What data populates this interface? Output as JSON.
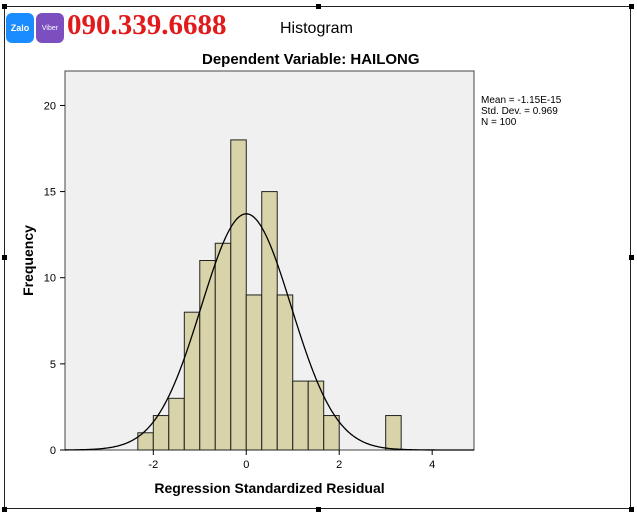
{
  "watermark": {
    "zalo_label": "Zalo",
    "viber_label": "Viber",
    "phone": "090.339.6688"
  },
  "chart_data": {
    "type": "bar",
    "title": "Histogram",
    "subtitle": "Dependent Variable: HAILONG",
    "xlabel": "Regression Standardized Residual",
    "ylabel": "Frequency",
    "xlim": [
      -3.9,
      4.9
    ],
    "ylim": [
      0,
      22
    ],
    "xticks": [
      -2,
      0,
      2,
      4
    ],
    "yticks": [
      0,
      5,
      10,
      15,
      20
    ],
    "bin_width": 0.333,
    "bins": [
      {
        "start": -2.333,
        "value": 1
      },
      {
        "start": -2.0,
        "value": 2
      },
      {
        "start": -1.667,
        "value": 3
      },
      {
        "start": -1.333,
        "value": 8
      },
      {
        "start": -1.0,
        "value": 11
      },
      {
        "start": -0.667,
        "value": 12
      },
      {
        "start": -0.333,
        "value": 18
      },
      {
        "start": 0.0,
        "value": 9
      },
      {
        "start": 0.333,
        "value": 15
      },
      {
        "start": 0.667,
        "value": 9
      },
      {
        "start": 1.0,
        "value": 4
      },
      {
        "start": 1.333,
        "value": 4
      },
      {
        "start": 1.667,
        "value": 2
      },
      {
        "start": 3.0,
        "value": 2
      }
    ],
    "normal_curve": {
      "mean": 0,
      "std_dev": 0.969,
      "n": 100
    },
    "stats": {
      "mean": "Mean = -1.15E-15",
      "std_dev": "Std. Dev. = 0.969",
      "n": "N = 100"
    },
    "colors": {
      "bar_fill": "#d8d3a8",
      "bar_stroke": "#222222",
      "plot_bg": "#f0f0f0",
      "curve": "#000000"
    },
    "grid": false
  }
}
